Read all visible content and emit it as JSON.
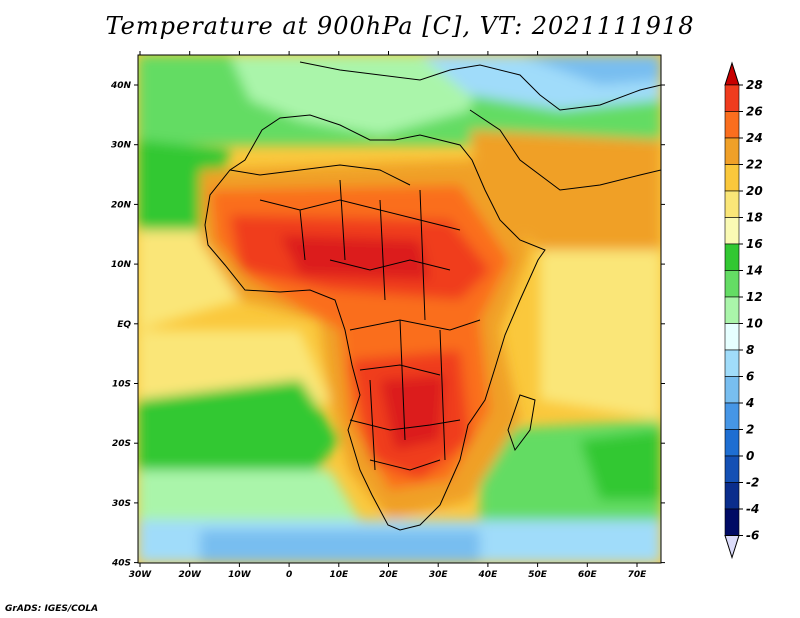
{
  "title": "Temperature at 900hPa [C], VT: 2021111918",
  "credit": "GrADS: IGES/COLA",
  "map": {
    "lat_labels": [
      "40N",
      "30N",
      "20N",
      "10N",
      "EQ",
      "10S",
      "20S",
      "30S",
      "40S"
    ],
    "lon_labels": [
      "30W",
      "20W",
      "10W",
      "0",
      "10E",
      "20E",
      "30E",
      "40E",
      "50E",
      "60E",
      "70E"
    ]
  },
  "colorbar": {
    "labels": [
      "28",
      "26",
      "24",
      "22",
      "20",
      "18",
      "16",
      "14",
      "12",
      "10",
      "8",
      "6",
      "4",
      "2",
      "0",
      "-2",
      "-4",
      "-6"
    ],
    "colors": [
      "#dc1e1e",
      "#f03c1e",
      "#fa6e1e",
      "#f0a028",
      "#fac83c",
      "#fae678",
      "#fafab4",
      "#32c832",
      "#64dc64",
      "#aaf5aa",
      "#e6ffff",
      "#a0dcfa",
      "#78bef0",
      "#4696e6",
      "#1e6ed2",
      "#1450b4",
      "#0a2d8c",
      "#000a64"
    ],
    "top_color": "#c80000",
    "bottom_color": "#dcdcfa"
  }
}
